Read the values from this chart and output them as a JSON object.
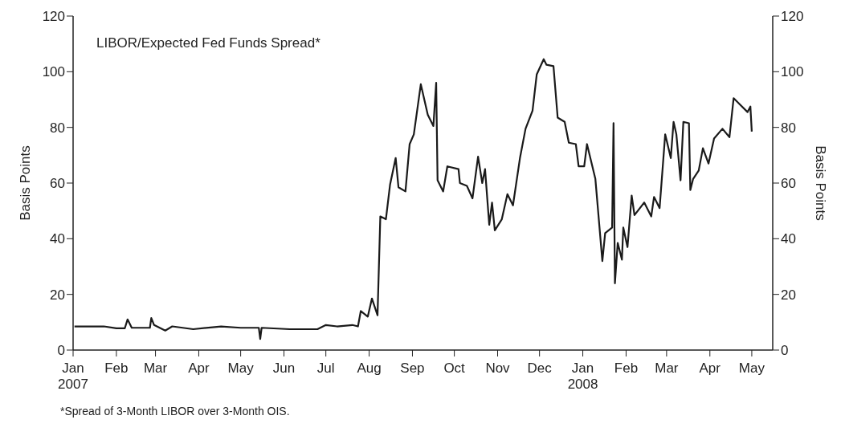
{
  "chart_data": {
    "type": "line",
    "title": "LIBOR/Expected Fed Funds Spread*",
    "ylabel": "Basis Points",
    "y2label": "Basis Points",
    "annotations": [
      "*Spread of 3-Month LIBOR over 3-Month OIS."
    ],
    "x": [
      "2007-01-02",
      "2007-01-23",
      "2007-02-01",
      "2007-02-07",
      "2007-02-09",
      "2007-02-12",
      "2007-02-25",
      "2007-02-26",
      "2007-02-28",
      "2007-03-08",
      "2007-03-13",
      "2007-03-28",
      "2007-04-17",
      "2007-05-01",
      "2007-05-14",
      "2007-05-15",
      "2007-05-16",
      "2007-06-05",
      "2007-06-25",
      "2007-07-01",
      "2007-07-09",
      "2007-07-20",
      "2007-07-24",
      "2007-07-26",
      "2007-07-31",
      "2007-08-03",
      "2007-08-07",
      "2007-08-09",
      "2007-08-13",
      "2007-08-16",
      "2007-08-20",
      "2007-08-22",
      "2007-08-27",
      "2007-08-30",
      "2007-09-02",
      "2007-09-07",
      "2007-09-12",
      "2007-09-16",
      "2007-09-18",
      "2007-09-19",
      "2007-09-23",
      "2007-09-26",
      "2007-10-04",
      "2007-10-05",
      "2007-10-10",
      "2007-10-14",
      "2007-10-18",
      "2007-10-21",
      "2007-10-23",
      "2007-10-26",
      "2007-10-28",
      "2007-10-30",
      "2007-11-04",
      "2007-11-08",
      "2007-11-12",
      "2007-11-17",
      "2007-11-21",
      "2007-11-26",
      "2007-11-29",
      "2007-12-04",
      "2007-12-06",
      "2007-12-11",
      "2007-12-14",
      "2007-12-19",
      "2007-12-22",
      "2007-12-27",
      "2007-12-29",
      "2008-01-02",
      "2008-01-04",
      "2008-01-10",
      "2008-01-15",
      "2008-01-17",
      "2008-01-22",
      "2008-01-23",
      "2008-01-24",
      "2008-01-26",
      "2008-01-29",
      "2008-01-30",
      "2008-02-02",
      "2008-02-05",
      "2008-02-07",
      "2008-02-14",
      "2008-02-19",
      "2008-02-21",
      "2008-02-25",
      "2008-02-29",
      "2008-03-04",
      "2008-03-06",
      "2008-03-08",
      "2008-03-11",
      "2008-03-13",
      "2008-03-17",
      "2008-03-18",
      "2008-03-20",
      "2008-03-24",
      "2008-03-27",
      "2008-03-31",
      "2008-04-04",
      "2008-04-10",
      "2008-04-15",
      "2008-04-18",
      "2008-04-22",
      "2008-04-28",
      "2008-04-30",
      "2008-05-01"
    ],
    "series": [
      {
        "color": "#1a1a1a",
        "values": [
          8.5,
          8.5,
          7.8,
          7.8,
          11,
          8,
          8,
          11.5,
          9,
          7,
          8.5,
          7.5,
          8.5,
          8,
          8,
          4,
          8,
          7.5,
          7.5,
          9,
          8.5,
          9,
          8.5,
          14,
          12,
          18.5,
          12.5,
          48,
          47,
          59.5,
          69,
          58.5,
          57,
          74,
          77.5,
          95.5,
          84.5,
          80.5,
          96,
          61,
          57,
          66,
          65,
          60,
          59,
          54.5,
          69.5,
          60,
          65,
          45,
          53,
          43,
          47,
          56,
          52,
          69,
          79.5,
          86,
          99,
          104.5,
          102.5,
          102,
          83.5,
          82,
          74.5,
          74,
          66,
          66,
          74,
          61.5,
          32,
          42,
          44,
          81.5,
          24,
          38.5,
          32.5,
          44,
          37,
          55.5,
          48.5,
          53,
          48,
          55,
          51,
          77.5,
          69,
          82,
          77.5,
          61,
          82,
          81.5,
          57.5,
          61.5,
          64.5,
          72.5,
          67,
          76,
          79.5,
          76.5,
          90.5,
          88.5,
          85.5,
          87.5,
          78.5
        ]
      }
    ],
    "xlim": [
      "2007-01-01",
      "2008-05-16"
    ],
    "xticks": [
      {
        "value": "2007-01-01",
        "label": "Jan\n2007"
      },
      {
        "value": "2007-02-01",
        "label": "Feb"
      },
      {
        "value": "2007-03-01",
        "label": "Mar"
      },
      {
        "value": "2007-04-01",
        "label": "Apr"
      },
      {
        "value": "2007-05-01",
        "label": "May"
      },
      {
        "value": "2007-06-01",
        "label": "Jun"
      },
      {
        "value": "2007-07-01",
        "label": "Jul"
      },
      {
        "value": "2007-08-01",
        "label": "Aug"
      },
      {
        "value": "2007-09-01",
        "label": "Sep"
      },
      {
        "value": "2007-10-01",
        "label": "Oct"
      },
      {
        "value": "2007-11-01",
        "label": "Nov"
      },
      {
        "value": "2007-12-01",
        "label": "Dec"
      },
      {
        "value": "2008-01-01",
        "label": "Jan\n2008"
      },
      {
        "value": "2008-02-01",
        "label": "Feb"
      },
      {
        "value": "2008-03-01",
        "label": "Mar"
      },
      {
        "value": "2008-04-01",
        "label": "Apr"
      },
      {
        "value": "2008-05-01",
        "label": "May"
      }
    ],
    "ylim": [
      0,
      120
    ],
    "yticks": [
      0,
      20,
      40,
      60,
      80,
      100,
      120
    ],
    "y2lim": [
      0,
      120
    ],
    "y2ticks": [
      0,
      20,
      40,
      60,
      80,
      100,
      120
    ],
    "grid": false,
    "legend": false,
    "marker": "none",
    "line_style": "solid"
  }
}
